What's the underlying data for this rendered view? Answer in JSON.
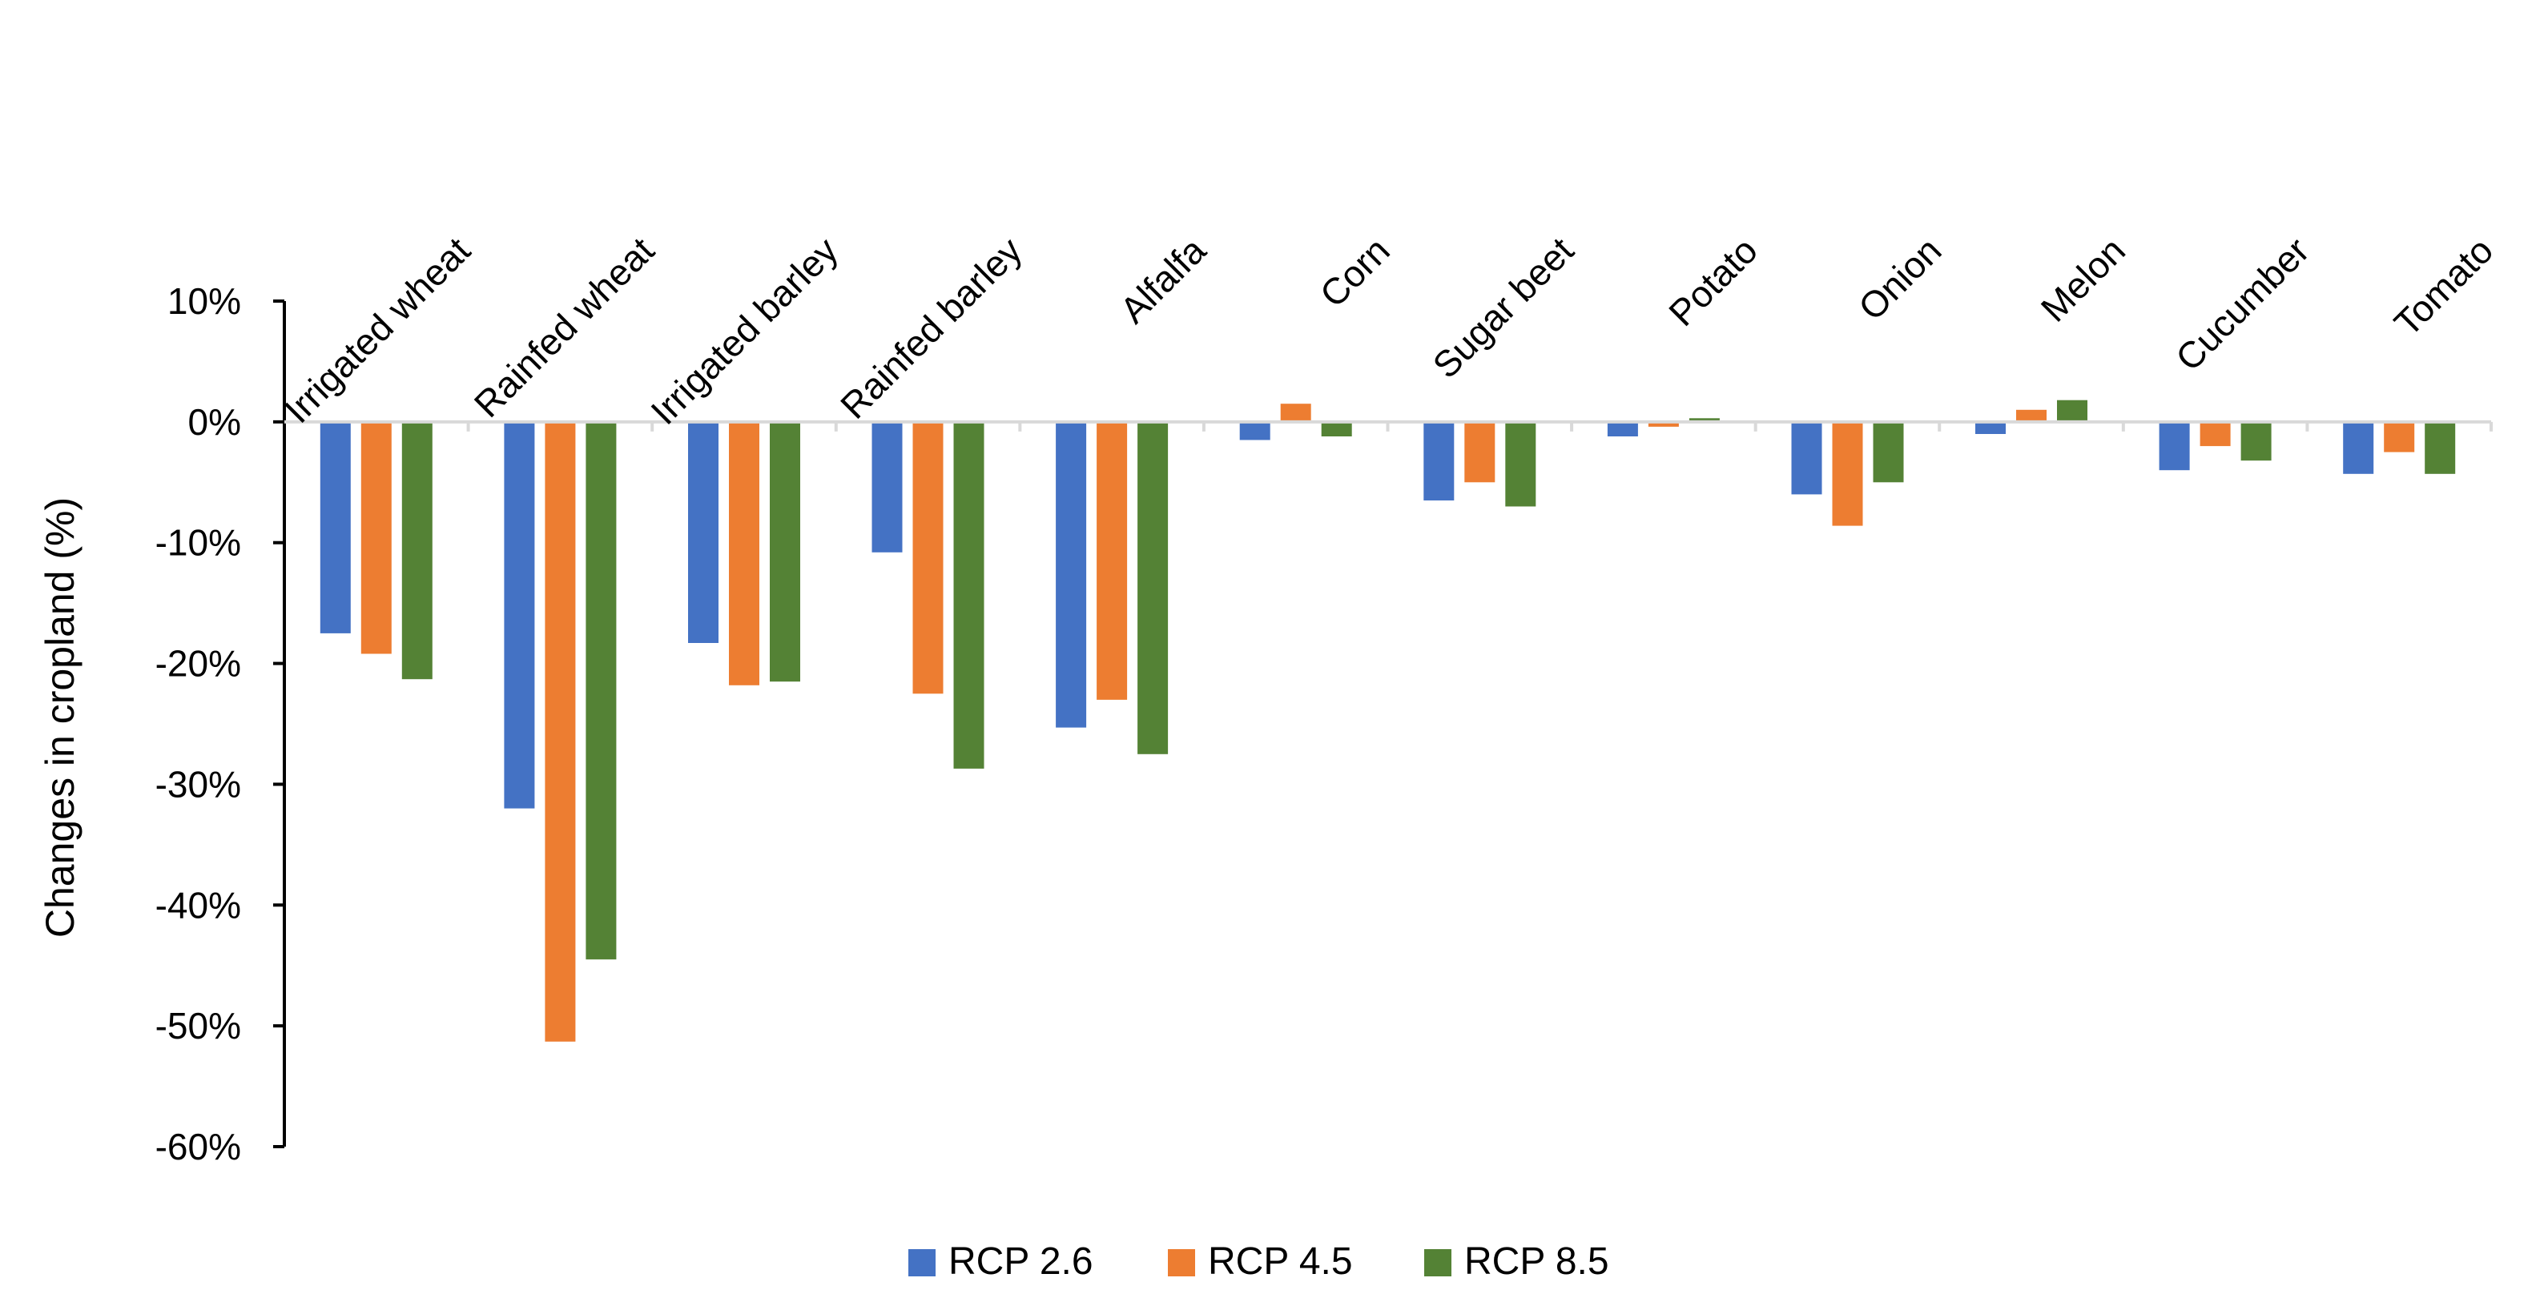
{
  "chart_data": {
    "type": "bar",
    "title": "",
    "xlabel": "",
    "ylabel": "Changes in cropland (%)",
    "ylim": [
      -60,
      10
    ],
    "yticks": [
      10,
      0,
      -10,
      -20,
      -30,
      -40,
      -50,
      -60
    ],
    "ytick_labels": [
      "10%",
      "0%",
      "-10%",
      "-20%",
      "-30%",
      "-40%",
      "-50%",
      "-60%"
    ],
    "grid": false,
    "legend_position": "bottom",
    "x_axis_labels_position": "top",
    "categories": [
      "Irrigated wheat",
      "Rainfed wheat",
      "Irrigated barley",
      "Rainfed barley",
      "Alfalfa",
      "Corn",
      "Sugar beet",
      "Potato",
      "Onion",
      "Melon",
      "Cucumber",
      "Tomato"
    ],
    "series": [
      {
        "name": "RCP 2.6",
        "color": "#4472C4",
        "values": [
          -17.5,
          -32,
          -18.3,
          -10.8,
          -25.3,
          -1.5,
          -6.5,
          -1.2,
          -6,
          -1,
          -4,
          -4.3
        ]
      },
      {
        "name": "RCP 4.5",
        "color": "#ED7D31",
        "values": [
          -19.2,
          -51.3,
          -21.8,
          -22.5,
          -23,
          1.5,
          -5,
          -0.4,
          -8.6,
          1,
          -2,
          -2.5
        ]
      },
      {
        "name": "RCP 8.5",
        "color": "#548235",
        "values": [
          -21.3,
          -44.5,
          -21.5,
          -28.7,
          -27.5,
          -1.2,
          -7,
          0.3,
          -5,
          1.8,
          -3.2,
          -4.3
        ]
      }
    ]
  }
}
